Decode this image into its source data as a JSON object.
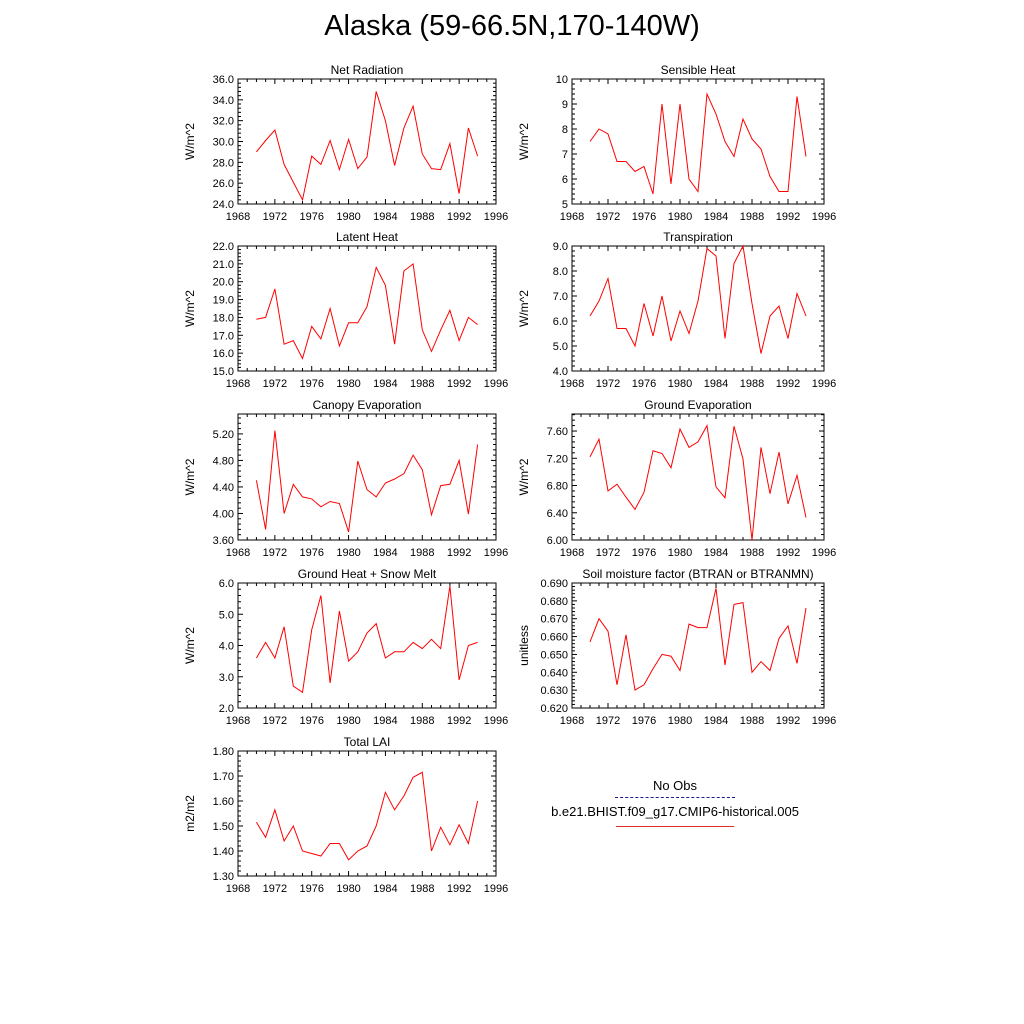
{
  "title": "Alaska (59-66.5N,170-140W)",
  "colors": {
    "model": "#ff0000",
    "obs": "#1a1a8c",
    "axis": "#000000"
  },
  "legend": {
    "obs_label": "No Obs",
    "model_label": "b.e21.BHIST.f09_g17.CMIP6-historical.005"
  },
  "chart_data": [
    {
      "type": "line",
      "title": "Net Radiation",
      "ylabel": "W/m^2",
      "xlim": [
        1968,
        1996
      ],
      "ylim": [
        24,
        36
      ],
      "xticks": [
        1968,
        1972,
        1976,
        1980,
        1984,
        1988,
        1992,
        1996
      ],
      "yticks": [
        24,
        26,
        28,
        30,
        32,
        34,
        36
      ],
      "ytick_labels": [
        "24.0",
        "26.0",
        "28.0",
        "30.0",
        "32.0",
        "34.0",
        "36.0"
      ],
      "x": [
        1970,
        1971,
        1972,
        1973,
        1974,
        1975,
        1976,
        1977,
        1978,
        1979,
        1980,
        1981,
        1982,
        1983,
        1984,
        1985,
        1986,
        1987,
        1988,
        1989,
        1990,
        1991,
        1992,
        1993,
        1994
      ],
      "series": [
        {
          "values": [
            29.0,
            30.1,
            31.1,
            27.8,
            26.1,
            24.4,
            28.6,
            27.8,
            30.1,
            27.3,
            30.2,
            27.4,
            28.5,
            34.8,
            32.0,
            27.7,
            31.3,
            33.4,
            28.8,
            27.4,
            27.3,
            29.8,
            25.0,
            31.3,
            28.6
          ]
        }
      ]
    },
    {
      "type": "line",
      "title": "Sensible Heat",
      "ylabel": "W/m^2",
      "xlim": [
        1968,
        1996
      ],
      "ylim": [
        5,
        10
      ],
      "xticks": [
        1968,
        1972,
        1976,
        1980,
        1984,
        1988,
        1992,
        1996
      ],
      "yticks": [
        5,
        6,
        7,
        8,
        9,
        10
      ],
      "ytick_labels": [
        "5",
        "6",
        "7",
        "8",
        "9",
        "10"
      ],
      "x": [
        1970,
        1971,
        1972,
        1973,
        1974,
        1975,
        1976,
        1977,
        1978,
        1979,
        1980,
        1981,
        1982,
        1983,
        1984,
        1985,
        1986,
        1987,
        1988,
        1989,
        1990,
        1991,
        1992,
        1993,
        1994
      ],
      "series": [
        {
          "values": [
            7.5,
            8.0,
            7.8,
            6.7,
            6.7,
            6.3,
            6.5,
            5.4,
            9.0,
            5.8,
            9.0,
            6.0,
            5.5,
            9.4,
            8.6,
            7.5,
            6.9,
            8.4,
            7.6,
            7.2,
            6.1,
            5.5,
            5.5,
            9.3,
            6.9
          ]
        }
      ]
    },
    {
      "type": "line",
      "title": "Latent Heat",
      "ylabel": "W/m^2",
      "xlim": [
        1968,
        1996
      ],
      "ylim": [
        15,
        22
      ],
      "xticks": [
        1968,
        1972,
        1976,
        1980,
        1984,
        1988,
        1992,
        1996
      ],
      "yticks": [
        15,
        16,
        17,
        18,
        19,
        20,
        21,
        22
      ],
      "ytick_labels": [
        "15.0",
        "16.0",
        "17.0",
        "18.0",
        "19.0",
        "20.0",
        "21.0",
        "22.0"
      ],
      "x": [
        1970,
        1971,
        1972,
        1973,
        1974,
        1975,
        1976,
        1977,
        1978,
        1979,
        1980,
        1981,
        1982,
        1983,
        1984,
        1985,
        1986,
        1987,
        1988,
        1989,
        1990,
        1991,
        1992,
        1993,
        1994
      ],
      "series": [
        {
          "values": [
            17.9,
            18.0,
            19.6,
            16.5,
            16.7,
            15.7,
            17.5,
            16.8,
            18.5,
            16.4,
            17.7,
            17.7,
            18.6,
            20.8,
            19.8,
            16.5,
            20.6,
            21.0,
            17.3,
            16.1,
            17.3,
            18.4,
            16.7,
            18.0,
            17.6
          ]
        }
      ]
    },
    {
      "type": "line",
      "title": "Transpiration",
      "ylabel": "W/m^2",
      "xlim": [
        1968,
        1996
      ],
      "ylim": [
        4,
        9
      ],
      "xticks": [
        1968,
        1972,
        1976,
        1980,
        1984,
        1988,
        1992,
        1996
      ],
      "yticks": [
        4,
        5,
        6,
        7,
        8,
        9
      ],
      "ytick_labels": [
        "4.0",
        "5.0",
        "6.0",
        "7.0",
        "8.0",
        "9.0"
      ],
      "x": [
        1970,
        1971,
        1972,
        1973,
        1974,
        1975,
        1976,
        1977,
        1978,
        1979,
        1980,
        1981,
        1982,
        1983,
        1984,
        1985,
        1986,
        1987,
        1988,
        1989,
        1990,
        1991,
        1992,
        1993,
        1994
      ],
      "series": [
        {
          "values": [
            6.2,
            6.8,
            7.7,
            5.7,
            5.7,
            5.0,
            6.7,
            5.4,
            7.0,
            5.2,
            6.4,
            5.5,
            6.8,
            8.9,
            8.6,
            5.3,
            8.3,
            9.0,
            6.7,
            4.7,
            6.2,
            6.6,
            5.3,
            7.1,
            6.2
          ]
        }
      ]
    },
    {
      "type": "line",
      "title": "Canopy Evaporation",
      "ylabel": "W/m^2",
      "xlim": [
        1968,
        1996
      ],
      "ylim": [
        3.6,
        5.5
      ],
      "xticks": [
        1968,
        1972,
        1976,
        1980,
        1984,
        1988,
        1992,
        1996
      ],
      "yticks": [
        3.6,
        4.0,
        4.4,
        4.8,
        5.2
      ],
      "ytick_labels": [
        "3.60",
        "4.00",
        "4.40",
        "4.80",
        "5.20"
      ],
      "x": [
        1970,
        1971,
        1972,
        1973,
        1974,
        1975,
        1976,
        1977,
        1978,
        1979,
        1980,
        1981,
        1982,
        1983,
        1984,
        1985,
        1986,
        1987,
        1988,
        1989,
        1990,
        1991,
        1992,
        1993,
        1994
      ],
      "series": [
        {
          "values": [
            4.5,
            3.76,
            5.25,
            4.0,
            4.44,
            4.25,
            4.22,
            4.1,
            4.18,
            4.15,
            3.72,
            4.79,
            4.36,
            4.25,
            4.46,
            4.52,
            4.6,
            4.88,
            4.66,
            3.98,
            4.42,
            4.44,
            4.8,
            3.99,
            5.04
          ]
        }
      ]
    },
    {
      "type": "line",
      "title": "Ground Evaporation",
      "ylabel": "W/m^2",
      "xlim": [
        1968,
        1996
      ],
      "ylim": [
        6.0,
        7.85
      ],
      "xticks": [
        1968,
        1972,
        1976,
        1980,
        1984,
        1988,
        1992,
        1996
      ],
      "yticks": [
        6.0,
        6.4,
        6.8,
        7.2,
        7.6
      ],
      "ytick_labels": [
        "6.00",
        "6.40",
        "6.80",
        "7.20",
        "7.60"
      ],
      "x": [
        1970,
        1971,
        1972,
        1973,
        1974,
        1975,
        1976,
        1977,
        1978,
        1979,
        1980,
        1981,
        1982,
        1983,
        1984,
        1985,
        1986,
        1987,
        1988,
        1989,
        1990,
        1991,
        1992,
        1993,
        1994
      ],
      "series": [
        {
          "values": [
            7.22,
            7.48,
            6.72,
            6.82,
            6.63,
            6.45,
            6.7,
            7.31,
            7.27,
            7.06,
            7.63,
            7.36,
            7.44,
            7.68,
            6.78,
            6.62,
            7.67,
            7.19,
            6.0,
            7.36,
            6.68,
            7.29,
            6.53,
            6.95,
            6.33
          ]
        }
      ]
    },
    {
      "type": "line",
      "title": "Ground Heat + Snow Melt",
      "ylabel": "W/m^2",
      "xlim": [
        1968,
        1996
      ],
      "ylim": [
        2,
        6
      ],
      "xticks": [
        1968,
        1972,
        1976,
        1980,
        1984,
        1988,
        1992,
        1996
      ],
      "yticks": [
        2,
        3,
        4,
        5,
        6
      ],
      "ytick_labels": [
        "2.0",
        "3.0",
        "4.0",
        "5.0",
        "6.0"
      ],
      "x": [
        1970,
        1971,
        1972,
        1973,
        1974,
        1975,
        1976,
        1977,
        1978,
        1979,
        1980,
        1981,
        1982,
        1983,
        1984,
        1985,
        1986,
        1987,
        1988,
        1989,
        1990,
        1991,
        1992,
        1993,
        1994
      ],
      "series": [
        {
          "values": [
            3.6,
            4.1,
            3.6,
            4.6,
            2.7,
            2.5,
            4.5,
            5.6,
            2.8,
            5.1,
            3.5,
            3.8,
            4.4,
            4.7,
            3.6,
            3.8,
            3.8,
            4.1,
            3.9,
            4.2,
            3.9,
            5.9,
            2.9,
            4.0,
            4.1
          ]
        }
      ]
    },
    {
      "type": "line",
      "title": "Soil moisture factor (BTRAN or BTRANMN)",
      "ylabel": "unitless",
      "xlim": [
        1968,
        1996
      ],
      "ylim": [
        0.62,
        0.69
      ],
      "xticks": [
        1968,
        1972,
        1976,
        1980,
        1984,
        1988,
        1992,
        1996
      ],
      "yticks": [
        0.62,
        0.63,
        0.64,
        0.65,
        0.66,
        0.67,
        0.68,
        0.69
      ],
      "ytick_labels": [
        "0.620",
        "0.630",
        "0.640",
        "0.650",
        "0.660",
        "0.670",
        "0.680",
        "0.690"
      ],
      "x": [
        1970,
        1971,
        1972,
        1973,
        1974,
        1975,
        1976,
        1977,
        1978,
        1979,
        1980,
        1981,
        1982,
        1983,
        1984,
        1985,
        1986,
        1987,
        1988,
        1989,
        1990,
        1991,
        1992,
        1993,
        1994
      ],
      "series": [
        {
          "values": [
            0.657,
            0.67,
            0.663,
            0.633,
            0.661,
            0.63,
            0.633,
            0.642,
            0.65,
            0.649,
            0.641,
            0.667,
            0.665,
            0.665,
            0.687,
            0.644,
            0.678,
            0.679,
            0.64,
            0.646,
            0.641,
            0.659,
            0.666,
            0.645,
            0.676
          ]
        }
      ]
    },
    {
      "type": "line",
      "title": "Total LAI",
      "ylabel": "m2/m2",
      "xlim": [
        1968,
        1996
      ],
      "ylim": [
        1.3,
        1.8
      ],
      "xticks": [
        1968,
        1972,
        1976,
        1980,
        1984,
        1988,
        1992,
        1996
      ],
      "yticks": [
        1.3,
        1.4,
        1.5,
        1.6,
        1.7,
        1.8
      ],
      "ytick_labels": [
        "1.30",
        "1.40",
        "1.50",
        "1.60",
        "1.70",
        "1.80"
      ],
      "x": [
        1970,
        1971,
        1972,
        1973,
        1974,
        1975,
        1976,
        1977,
        1978,
        1979,
        1980,
        1981,
        1982,
        1983,
        1984,
        1985,
        1986,
        1987,
        1988,
        1989,
        1990,
        1991,
        1992,
        1993,
        1994
      ],
      "series": [
        {
          "values": [
            1.515,
            1.455,
            1.565,
            1.44,
            1.5,
            1.4,
            1.39,
            1.38,
            1.43,
            1.43,
            1.365,
            1.4,
            1.42,
            1.5,
            1.635,
            1.565,
            1.62,
            1.695,
            1.715,
            1.4,
            1.495,
            1.425,
            1.505,
            1.43,
            1.6
          ]
        }
      ]
    }
  ]
}
